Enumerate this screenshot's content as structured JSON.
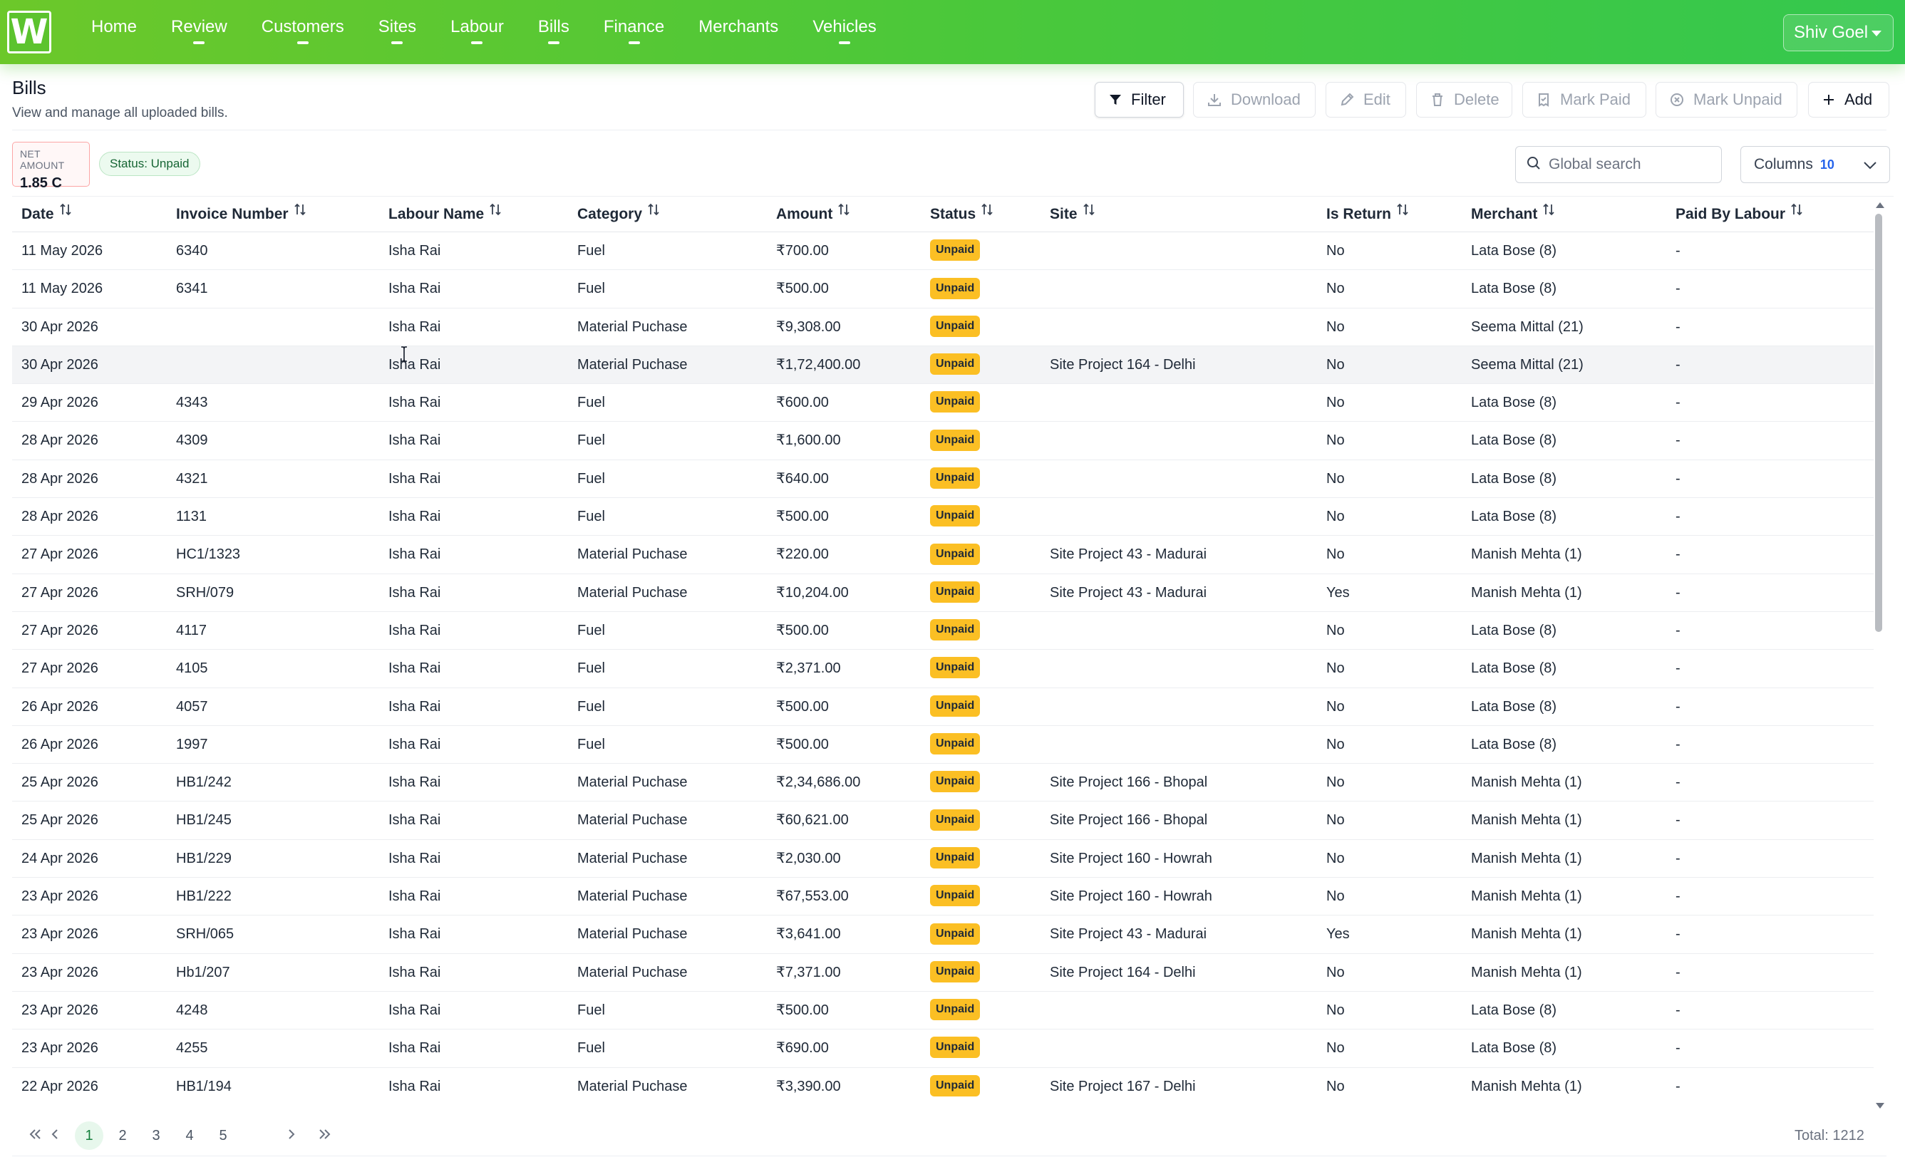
{
  "app": {
    "logo_letter": "W",
    "nav": [
      {
        "label": "Home",
        "dropdown": false
      },
      {
        "label": "Review",
        "dropdown": true
      },
      {
        "label": "Customers",
        "dropdown": true
      },
      {
        "label": "Sites",
        "dropdown": true
      },
      {
        "label": "Labour",
        "dropdown": true
      },
      {
        "label": "Bills",
        "dropdown": true
      },
      {
        "label": "Finance",
        "dropdown": true
      },
      {
        "label": "Merchants",
        "dropdown": false
      },
      {
        "label": "Vehicles",
        "dropdown": true
      }
    ],
    "user_name": "Shiv Goel",
    "accent_color": "#4bc83a"
  },
  "page": {
    "title": "Bills",
    "subtitle": "View and manage all uploaded bills."
  },
  "actions": {
    "filter": "Filter",
    "download": "Download",
    "edit": "Edit",
    "delete": "Delete",
    "mark_paid": "Mark Paid",
    "mark_unpaid": "Mark Unpaid",
    "add": "Add"
  },
  "summary": {
    "net_amount_label": "NET AMOUNT",
    "net_amount_value": "1.85 C",
    "status_filter_chip": "Status: Unpaid"
  },
  "search": {
    "placeholder": "Global search",
    "value": ""
  },
  "columns_control": {
    "label": "Columns",
    "count": "10"
  },
  "table": {
    "headers": {
      "date": "Date",
      "invoice": "Invoice Number",
      "labour": "Labour Name",
      "category": "Category",
      "amount": "Amount",
      "status": "Status",
      "site": "Site",
      "is_return": "Is Return",
      "merchant": "Merchant",
      "paid_by_labour": "Paid By Labour"
    },
    "rows": [
      {
        "date": "11 May 2026",
        "invoice": "6340",
        "labour": "Isha Rai",
        "category": "Fuel",
        "amount": "₹700.00",
        "status": "Unpaid",
        "site": "",
        "is_return": "No",
        "merchant": "Lata Bose (8)",
        "paid_by_labour": "-"
      },
      {
        "date": "11 May 2026",
        "invoice": "6341",
        "labour": "Isha Rai",
        "category": "Fuel",
        "amount": "₹500.00",
        "status": "Unpaid",
        "site": "",
        "is_return": "No",
        "merchant": "Lata Bose (8)",
        "paid_by_labour": "-"
      },
      {
        "date": "30 Apr 2026",
        "invoice": "",
        "labour": "Isha Rai",
        "category": "Material Puchase",
        "amount": "₹9,308.00",
        "status": "Unpaid",
        "site": "",
        "is_return": "No",
        "merchant": "Seema Mittal (21)",
        "paid_by_labour": "-"
      },
      {
        "date": "30 Apr 2026",
        "invoice": "",
        "labour": "Isha Rai",
        "category": "Material Puchase",
        "amount": "₹1,72,400.00",
        "status": "Unpaid",
        "site": "Site Project 164 - Delhi",
        "is_return": "No",
        "merchant": "Seema Mittal (21)",
        "paid_by_labour": "-"
      },
      {
        "date": "29 Apr 2026",
        "invoice": "4343",
        "labour": "Isha Rai",
        "category": "Fuel",
        "amount": "₹600.00",
        "status": "Unpaid",
        "site": "",
        "is_return": "No",
        "merchant": "Lata Bose (8)",
        "paid_by_labour": "-"
      },
      {
        "date": "28 Apr 2026",
        "invoice": "4309",
        "labour": "Isha Rai",
        "category": "Fuel",
        "amount": "₹1,600.00",
        "status": "Unpaid",
        "site": "",
        "is_return": "No",
        "merchant": "Lata Bose (8)",
        "paid_by_labour": "-"
      },
      {
        "date": "28 Apr 2026",
        "invoice": "4321",
        "labour": "Isha Rai",
        "category": "Fuel",
        "amount": "₹640.00",
        "status": "Unpaid",
        "site": "",
        "is_return": "No",
        "merchant": "Lata Bose (8)",
        "paid_by_labour": "-"
      },
      {
        "date": "28 Apr 2026",
        "invoice": "1131",
        "labour": "Isha Rai",
        "category": "Fuel",
        "amount": "₹500.00",
        "status": "Unpaid",
        "site": "",
        "is_return": "No",
        "merchant": "Lata Bose (8)",
        "paid_by_labour": "-"
      },
      {
        "date": "27 Apr 2026",
        "invoice": "HC1/1323",
        "labour": "Isha Rai",
        "category": "Material Puchase",
        "amount": "₹220.00",
        "status": "Unpaid",
        "site": "Site Project 43 - Madurai",
        "is_return": "No",
        "merchant": "Manish Mehta (1)",
        "paid_by_labour": "-"
      },
      {
        "date": "27 Apr 2026",
        "invoice": "SRH/079",
        "labour": "Isha Rai",
        "category": "Material Puchase",
        "amount": "₹10,204.00",
        "status": "Unpaid",
        "site": "Site Project 43 - Madurai",
        "is_return": "Yes",
        "merchant": "Manish Mehta (1)",
        "paid_by_labour": "-"
      },
      {
        "date": "27 Apr 2026",
        "invoice": "4117",
        "labour": "Isha Rai",
        "category": "Fuel",
        "amount": "₹500.00",
        "status": "Unpaid",
        "site": "",
        "is_return": "No",
        "merchant": "Lata Bose (8)",
        "paid_by_labour": "-"
      },
      {
        "date": "27 Apr 2026",
        "invoice": "4105",
        "labour": "Isha Rai",
        "category": "Fuel",
        "amount": "₹2,371.00",
        "status": "Unpaid",
        "site": "",
        "is_return": "No",
        "merchant": "Lata Bose (8)",
        "paid_by_labour": "-"
      },
      {
        "date": "26 Apr 2026",
        "invoice": "4057",
        "labour": "Isha Rai",
        "category": "Fuel",
        "amount": "₹500.00",
        "status": "Unpaid",
        "site": "",
        "is_return": "No",
        "merchant": "Lata Bose (8)",
        "paid_by_labour": "-"
      },
      {
        "date": "26 Apr 2026",
        "invoice": "1997",
        "labour": "Isha Rai",
        "category": "Fuel",
        "amount": "₹500.00",
        "status": "Unpaid",
        "site": "",
        "is_return": "No",
        "merchant": "Lata Bose (8)",
        "paid_by_labour": "-"
      },
      {
        "date": "25 Apr 2026",
        "invoice": "HB1/242",
        "labour": "Isha Rai",
        "category": "Material Puchase",
        "amount": "₹2,34,686.00",
        "status": "Unpaid",
        "site": "Site Project 166 - Bhopal",
        "is_return": "No",
        "merchant": "Manish Mehta (1)",
        "paid_by_labour": "-"
      },
      {
        "date": "25 Apr 2026",
        "invoice": "HB1/245",
        "labour": "Isha Rai",
        "category": "Material Puchase",
        "amount": "₹60,621.00",
        "status": "Unpaid",
        "site": "Site Project 166 - Bhopal",
        "is_return": "No",
        "merchant": "Manish Mehta (1)",
        "paid_by_labour": "-"
      },
      {
        "date": "24 Apr 2026",
        "invoice": "HB1/229",
        "labour": "Isha Rai",
        "category": "Material Puchase",
        "amount": "₹2,030.00",
        "status": "Unpaid",
        "site": "Site Project 160 - Howrah",
        "is_return": "No",
        "merchant": "Manish Mehta (1)",
        "paid_by_labour": "-"
      },
      {
        "date": "23 Apr 2026",
        "invoice": "HB1/222",
        "labour": "Isha Rai",
        "category": "Material Puchase",
        "amount": "₹67,553.00",
        "status": "Unpaid",
        "site": "Site Project 160 - Howrah",
        "is_return": "No",
        "merchant": "Manish Mehta (1)",
        "paid_by_labour": "-"
      },
      {
        "date": "23 Apr 2026",
        "invoice": "SRH/065",
        "labour": "Isha Rai",
        "category": "Material Puchase",
        "amount": "₹3,641.00",
        "status": "Unpaid",
        "site": "Site Project 43 - Madurai",
        "is_return": "Yes",
        "merchant": "Manish Mehta (1)",
        "paid_by_labour": "-"
      },
      {
        "date": "23 Apr 2026",
        "invoice": "Hb1/207",
        "labour": "Isha Rai",
        "category": "Material Puchase",
        "amount": "₹7,371.00",
        "status": "Unpaid",
        "site": "Site Project 164 - Delhi",
        "is_return": "No",
        "merchant": "Manish Mehta (1)",
        "paid_by_labour": "-"
      },
      {
        "date": "23 Apr 2026",
        "invoice": "4248",
        "labour": "Isha Rai",
        "category": "Fuel",
        "amount": "₹500.00",
        "status": "Unpaid",
        "site": "",
        "is_return": "No",
        "merchant": "Lata Bose (8)",
        "paid_by_labour": "-"
      },
      {
        "date": "23 Apr 2026",
        "invoice": "4255",
        "labour": "Isha Rai",
        "category": "Fuel",
        "amount": "₹690.00",
        "status": "Unpaid",
        "site": "",
        "is_return": "No",
        "merchant": "Lata Bose (8)",
        "paid_by_labour": "-"
      },
      {
        "date": "22 Apr 2026",
        "invoice": "HB1/194",
        "labour": "Isha Rai",
        "category": "Material Puchase",
        "amount": "₹3,390.00",
        "status": "Unpaid",
        "site": "Site Project 167 - Delhi",
        "is_return": "No",
        "merchant": "Manish Mehta (1)",
        "paid_by_labour": "-"
      }
    ],
    "hover_row_index": 3,
    "status_badge_color": "#fbbf24"
  },
  "pagination": {
    "pages": [
      "1",
      "2",
      "3",
      "4",
      "5"
    ],
    "current_page": "1",
    "total": "Total: 1212"
  }
}
